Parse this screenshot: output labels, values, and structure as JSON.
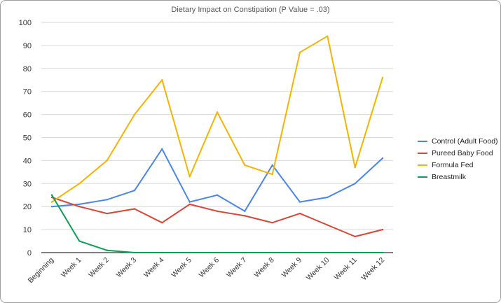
{
  "chart_data": {
    "type": "line",
    "title": "Dietary Impact on Constipation (P Value = .03)",
    "xlabel": "",
    "ylabel": "",
    "categories": [
      "Beginning",
      "Week 1",
      "Week 2",
      "Week 3",
      "Week 4",
      "Week 5",
      "Week 6",
      "Week 7",
      "Week 8",
      "Week 9",
      "Week 10",
      "Week 11",
      "Week 12"
    ],
    "ylim": [
      0,
      100
    ],
    "yticks": [
      0,
      10,
      20,
      30,
      40,
      50,
      60,
      70,
      80,
      90,
      100
    ],
    "grid": "horizontal",
    "legend_position": "right",
    "series": [
      {
        "name": "Control (Adult Food)",
        "color": "#4a86e8",
        "values": [
          20,
          21,
          23,
          27,
          45,
          22,
          25,
          18,
          38,
          22,
          24,
          30,
          41
        ]
      },
      {
        "name": "Pureed Baby Food",
        "color": "#db4437",
        "values": [
          24,
          20,
          17,
          19,
          13,
          21,
          18,
          16,
          13,
          17,
          12,
          7,
          10
        ]
      },
      {
        "name": "Formula Fed",
        "color": "#f4b400",
        "values": [
          22,
          30,
          40,
          60,
          75,
          33,
          61,
          38,
          34,
          87,
          94,
          37,
          76
        ]
      },
      {
        "name": "Breastmilk",
        "color": "#0f9d58",
        "values": [
          25,
          5,
          1,
          0,
          0,
          0,
          0,
          0,
          0,
          0,
          0,
          0,
          0
        ]
      }
    ]
  }
}
